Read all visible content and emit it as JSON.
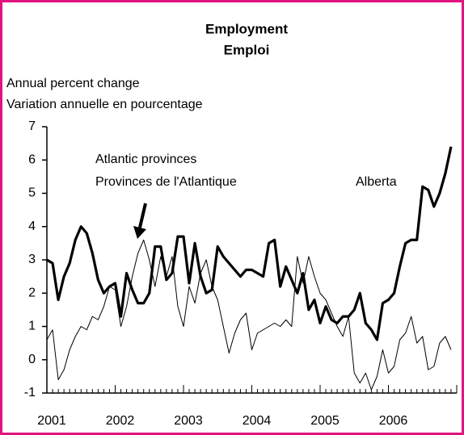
{
  "chart_data": {
    "type": "line",
    "title": "Employment",
    "subtitle": "Emploi",
    "y_label": [
      "Annual percent change",
      "Variation annuelle en pourcentage"
    ],
    "categories": [
      "2001",
      null,
      null,
      null,
      null,
      null,
      null,
      null,
      null,
      null,
      null,
      null,
      "2002",
      null,
      null,
      null,
      null,
      null,
      null,
      null,
      null,
      null,
      null,
      null,
      "2003",
      null,
      null,
      null,
      null,
      null,
      null,
      null,
      null,
      null,
      null,
      null,
      "2004",
      null,
      null,
      null,
      null,
      null,
      null,
      null,
      null,
      null,
      null,
      null,
      "2005",
      null,
      null,
      null,
      null,
      null,
      null,
      null,
      null,
      null,
      null,
      null,
      "2006",
      null,
      null,
      null,
      null,
      null,
      null,
      null,
      null,
      null,
      null,
      null
    ],
    "series": [
      {
        "name": "Alberta",
        "color": "#000000",
        "values": [
          3.0,
          2.9,
          1.8,
          2.5,
          2.9,
          3.6,
          4.0,
          3.8,
          3.2,
          2.4,
          2.0,
          2.2,
          2.3,
          1.3,
          2.6,
          2.1,
          1.7,
          1.7,
          2.0,
          3.4,
          3.4,
          2.4,
          2.6,
          3.7,
          3.7,
          2.3,
          3.5,
          2.5,
          2.0,
          2.1,
          3.4,
          3.1,
          2.9,
          2.7,
          2.5,
          2.7,
          2.7,
          2.6,
          2.5,
          3.5,
          3.6,
          2.2,
          2.8,
          2.4,
          2.0,
          2.6,
          1.5,
          1.8,
          1.1,
          1.6,
          1.2,
          1.1,
          1.3,
          1.3,
          1.5,
          2.0,
          1.1,
          0.9,
          0.6,
          1.7,
          1.8,
          2.0,
          2.8,
          3.5,
          3.6,
          3.6,
          5.2,
          5.1,
          4.6,
          5.0,
          5.6,
          6.4
        ]
      },
      {
        "name": "Atlantic provinces",
        "name_fr": "Provinces de l'Atlantique",
        "color": "#000000",
        "values": [
          0.6,
          0.9,
          -0.6,
          -0.3,
          0.3,
          0.7,
          1.0,
          0.9,
          1.3,
          1.2,
          1.6,
          2.2,
          2.1,
          1.0,
          1.6,
          2.5,
          3.2,
          3.6,
          3.0,
          2.2,
          3.1,
          2.5,
          3.1,
          1.6,
          1.0,
          2.2,
          1.7,
          2.6,
          3.0,
          2.2,
          1.8,
          1.0,
          0.2,
          0.8,
          1.2,
          1.4,
          0.3,
          0.8,
          0.9,
          1.0,
          1.1,
          1.0,
          1.2,
          1.0,
          3.1,
          2.3,
          3.1,
          2.5,
          2.0,
          1.8,
          1.4,
          1.0,
          0.7,
          1.3,
          -0.4,
          -0.7,
          -0.4,
          -0.9,
          -0.5,
          0.3,
          -0.4,
          -0.2,
          0.6,
          0.8,
          1.3,
          0.5,
          0.7,
          -0.3,
          -0.2,
          0.5,
          0.7,
          0.3
        ]
      }
    ],
    "ylim": [
      -1,
      7
    ],
    "yticks": [
      -1,
      0,
      1,
      2,
      3,
      4,
      5,
      6,
      7
    ],
    "grid": false
  }
}
